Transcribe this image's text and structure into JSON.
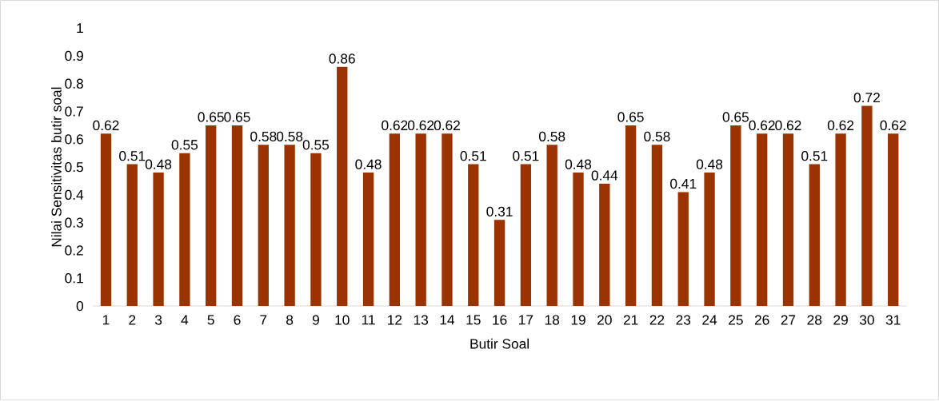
{
  "chart_data": {
    "type": "bar",
    "xlabel": "Butir Soal",
    "ylabel": "Nilai Sensitivitas butir soal",
    "categories": [
      "1",
      "2",
      "3",
      "4",
      "5",
      "6",
      "7",
      "8",
      "9",
      "10",
      "11",
      "12",
      "13",
      "14",
      "15",
      "16",
      "17",
      "18",
      "19",
      "20",
      "21",
      "22",
      "23",
      "24",
      "25",
      "26",
      "27",
      "28",
      "29",
      "30",
      "31"
    ],
    "values": [
      0.62,
      0.51,
      0.48,
      0.55,
      0.65,
      0.65,
      0.58,
      0.58,
      0.55,
      0.86,
      0.48,
      0.62,
      0.62,
      0.62,
      0.51,
      0.31,
      0.51,
      0.58,
      0.48,
      0.44,
      0.65,
      0.58,
      0.41,
      0.48,
      0.65,
      0.62,
      0.62,
      0.51,
      0.62,
      0.72,
      0.62
    ],
    "color": "#9a3300",
    "ylim": [
      0,
      1
    ],
    "yticks": [
      0,
      0.1,
      0.2,
      0.3,
      0.4,
      0.5,
      0.6,
      0.7,
      0.8,
      0.9,
      1
    ],
    "data_labels": true
  }
}
